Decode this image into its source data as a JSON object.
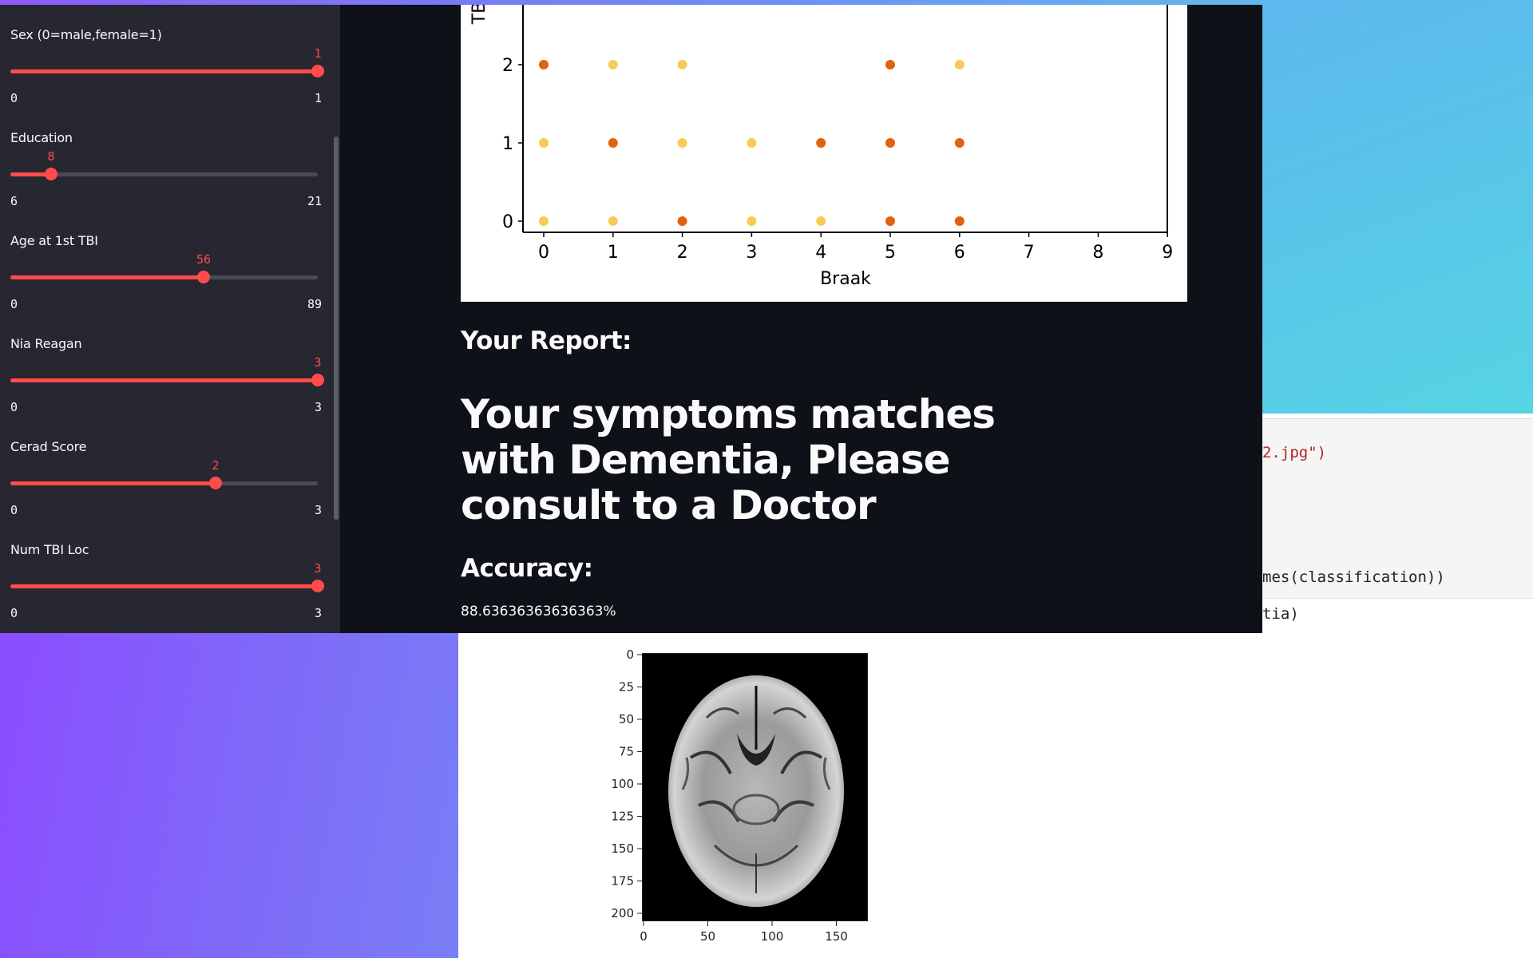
{
  "sidebar": {
    "sliders": [
      {
        "label": "Sex (0=male,female=1)",
        "value": 1,
        "min": 0,
        "max": 1,
        "value_text": "1",
        "min_text": "0",
        "max_text": "1"
      },
      {
        "label": "Education",
        "value": 8,
        "min": 6,
        "max": 21,
        "value_text": "8",
        "min_text": "6",
        "max_text": "21"
      },
      {
        "label": "Age at 1st TBI",
        "value": 56,
        "min": 0,
        "max": 89,
        "value_text": "56",
        "min_text": "0",
        "max_text": "89"
      },
      {
        "label": "Nia Reagan",
        "value": 3,
        "min": 0,
        "max": 3,
        "value_text": "3",
        "min_text": "0",
        "max_text": "3"
      },
      {
        "label": "Cerad Score",
        "value": 2,
        "min": 0,
        "max": 3,
        "value_text": "2",
        "min_text": "0",
        "max_text": "3"
      },
      {
        "label": "Num TBI Loc",
        "value": 3,
        "min": 0,
        "max": 3,
        "value_text": "3",
        "min_text": "0",
        "max_text": "3"
      }
    ]
  },
  "main": {
    "report_heading": "Your Report:",
    "result_heading": "Your symptoms matches with Dementia, Please consult to a Doctor",
    "accuracy_heading": "Accuracy:",
    "accuracy_value": "88.63636363636363%"
  },
  "notebook": {
    "code_line_1": "2.jpg\")",
    "code_line_2": "mes(classification))",
    "code_line_3": "tia)"
  },
  "colors": {
    "accent": "#ff4b4b",
    "dot_dark": "#e0620f",
    "dot_light": "#f8cb55"
  },
  "chart_data": [
    {
      "type": "scatter",
      "xlabel": "Braak",
      "ylabel_partial": "TB",
      "xlim": [
        -0.3,
        9
      ],
      "x_ticks": [
        "0",
        "1",
        "2",
        "3",
        "4",
        "5",
        "6",
        "7",
        "8",
        "9"
      ],
      "y_ticks": [
        "0",
        "1",
        "2"
      ],
      "series": [
        {
          "color": "#e0620f",
          "points": [
            [
              0,
              2
            ],
            [
              5,
              2
            ],
            [
              1,
              1
            ],
            [
              4,
              1
            ],
            [
              5,
              1
            ],
            [
              6,
              1
            ],
            [
              2,
              0
            ],
            [
              5,
              0
            ],
            [
              6,
              0
            ]
          ]
        },
        {
          "color": "#f8cb55",
          "points": [
            [
              1,
              2
            ],
            [
              2,
              2
            ],
            [
              6,
              2
            ],
            [
              0,
              1
            ],
            [
              2,
              1
            ],
            [
              3,
              1
            ],
            [
              0,
              0
            ],
            [
              1,
              0
            ],
            [
              3,
              0
            ],
            [
              4,
              0
            ]
          ]
        }
      ]
    },
    {
      "type": "image",
      "x_ticks": [
        "0",
        "50",
        "100",
        "150"
      ],
      "y_ticks": [
        "0",
        "25",
        "50",
        "75",
        "100",
        "125",
        "150",
        "175",
        "200"
      ]
    }
  ]
}
